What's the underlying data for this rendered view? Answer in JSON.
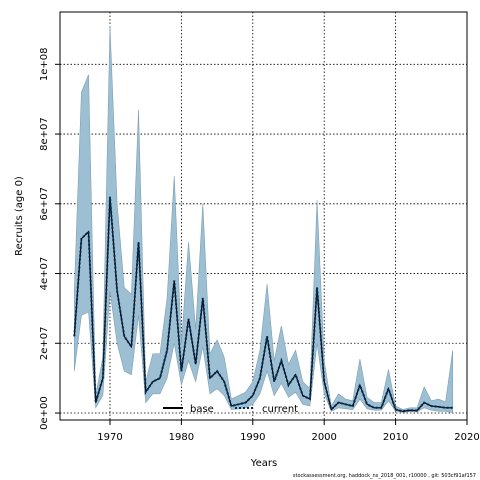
{
  "chart_data": {
    "type": "area",
    "xlabel": "Years",
    "ylabel": "Recruits (age 0)",
    "xlim": [
      1963,
      2020
    ],
    "ylim": [
      -2000000,
      115000000
    ],
    "x_ticks": [
      1970,
      1980,
      1990,
      2000,
      2010,
      2020
    ],
    "y_ticks": [
      0,
      20000000,
      40000000,
      60000000,
      80000000,
      100000000
    ],
    "x_tick_labels": [
      "1970",
      "1980",
      "1990",
      "2000",
      "2010",
      "2020"
    ],
    "y_tick_labels": [
      "0e+00",
      "2e+07",
      "4e+07",
      "6e+07",
      "8e+07",
      "1e+08"
    ],
    "grid": true,
    "legend_position": "bottom",
    "legend": [
      {
        "label": "base",
        "style": "solid"
      },
      {
        "label": "current",
        "style": "dotted"
      }
    ],
    "footnote": "stockassessment.org,  haddock_ns_2018_001, r10000 ,  git: 503cf91af157",
    "colors": {
      "band": "#9dbfd3",
      "band_edge": "#7f9fb3",
      "current_line": "#002b55",
      "base_line": "#000000",
      "grid": "#000000"
    },
    "x": [
      1965,
      1966,
      1967,
      1968,
      1969,
      1970,
      1971,
      1972,
      1973,
      1974,
      1975,
      1976,
      1977,
      1978,
      1979,
      1980,
      1981,
      1982,
      1983,
      1984,
      1985,
      1986,
      1987,
      1988,
      1989,
      1990,
      1991,
      1992,
      1993,
      1994,
      1995,
      1996,
      1997,
      1998,
      1999,
      2000,
      2001,
      2002,
      2003,
      2004,
      2005,
      2006,
      2007,
      2008,
      2009,
      2010,
      2011,
      2012,
      2013,
      2014,
      2015,
      2016,
      2017,
      2018
    ],
    "series": [
      {
        "name": "current",
        "values": [
          22000000,
          50000000,
          52000000,
          3000000,
          10000000,
          62000000,
          35000000,
          22000000,
          19000000,
          49000000,
          6000000,
          9000000,
          10000000,
          18000000,
          38000000,
          12000000,
          27000000,
          14000000,
          33000000,
          10000000,
          12000000,
          9000000,
          2000000,
          2500000,
          3000000,
          5000000,
          10000000,
          22000000,
          9000000,
          15000000,
          8000000,
          11000000,
          5000000,
          4000000,
          36000000,
          9000000,
          1000000,
          3000000,
          2500000,
          2000000,
          8000000,
          2500000,
          1500000,
          1500000,
          7000000,
          1000000,
          500000,
          800000,
          700000,
          3000000,
          2000000,
          1800000,
          1500000,
          1500000
        ]
      },
      {
        "name": "upper",
        "values": [
          35000000,
          92000000,
          97000000,
          5000000,
          16000000,
          111000000,
          60000000,
          36000000,
          34000000,
          87000000,
          9000000,
          17000000,
          17000000,
          33000000,
          68000000,
          20000000,
          49000000,
          24000000,
          60000000,
          17000000,
          21000000,
          16000000,
          4000000,
          5000000,
          6000000,
          9000000,
          18000000,
          37000000,
          15000000,
          25000000,
          14000000,
          18000000,
          9000000,
          7000000,
          61000000,
          15000000,
          2000000,
          5500000,
          4000000,
          3500000,
          15500000,
          4500000,
          3000000,
          3000000,
          12500000,
          2000000,
          1000000,
          1500000,
          1500000,
          7500000,
          3500000,
          4000000,
          3200000,
          18000000
        ]
      },
      {
        "name": "lower",
        "values": [
          12000000,
          28000000,
          29000000,
          1500000,
          5000000,
          35000000,
          20000000,
          12000000,
          11000000,
          28000000,
          3000000,
          5500000,
          5500000,
          10000000,
          20000000,
          8000000,
          15000000,
          9000000,
          19000000,
          5500000,
          7000000,
          5000000,
          1000000,
          1200000,
          1500000,
          2500000,
          5500000,
          12000000,
          5000000,
          8500000,
          4500000,
          6000000,
          2500000,
          2000000,
          20000000,
          5500000,
          500000,
          1500000,
          1200000,
          1000000,
          4000000,
          1200000,
          800000,
          800000,
          3500000,
          500000,
          200000,
          400000,
          300000,
          1500000,
          800000,
          500000,
          500000,
          100000
        ]
      }
    ]
  }
}
